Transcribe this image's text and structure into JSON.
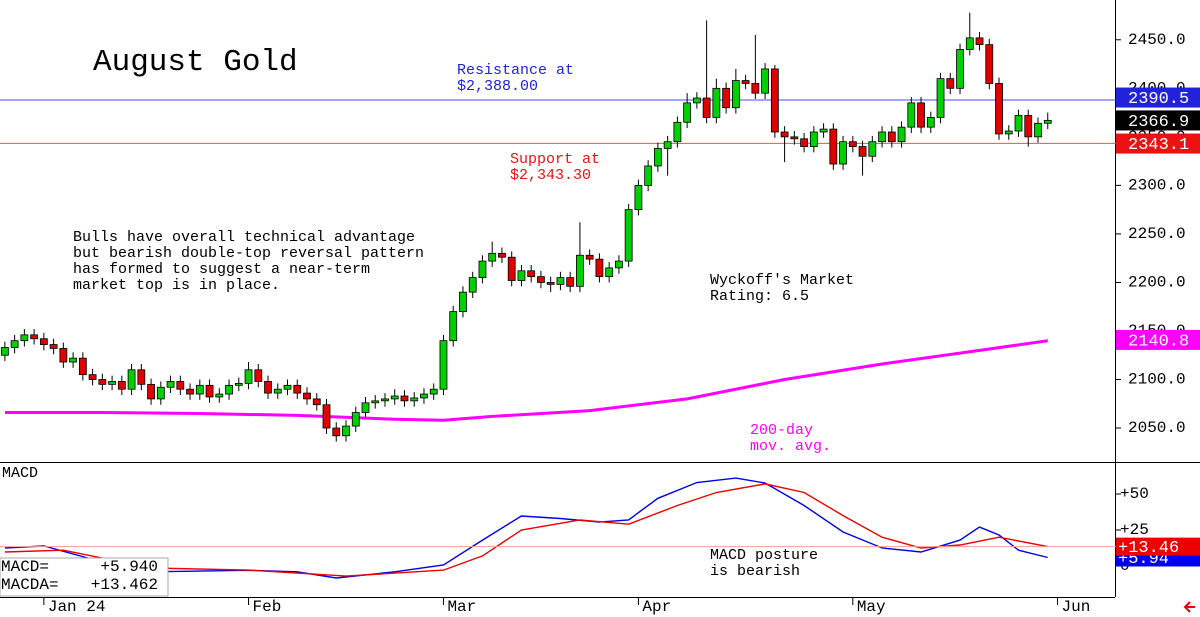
{
  "chart_data": [
    {
      "type": "candlestick",
      "title": "August Gold",
      "xlim": [
        -0.5,
        113.9
      ],
      "xticks": [
        {
          "value": 4,
          "label": "Jan 24"
        },
        {
          "value": 25,
          "label": "Feb"
        },
        {
          "value": 45,
          "label": "Mar"
        },
        {
          "value": 65,
          "label": "Apr"
        },
        {
          "value": 87,
          "label": "May"
        },
        {
          "value": 108,
          "label": "Jun"
        }
      ],
      "ylim": [
        2015,
        2491
      ],
      "yticks": [
        {
          "value": 2050,
          "label": "2050.0"
        },
        {
          "value": 2100,
          "label": "2100.0"
        },
        {
          "value": 2150,
          "label": "2150.0"
        },
        {
          "value": 2200,
          "label": "2200.0"
        },
        {
          "value": 2250,
          "label": "2250.0"
        },
        {
          "value": 2300,
          "label": "2300.0"
        },
        {
          "value": 2350,
          "label": "2350.0"
        },
        {
          "value": 2400,
          "label": "2400.0"
        },
        {
          "value": 2450,
          "label": "2450.0"
        }
      ],
      "up_color": "#00d000",
      "down_color": "#e00000",
      "open": [
        2125,
        2133,
        2140,
        2146,
        2142,
        2136,
        2132,
        2118,
        2122,
        2105,
        2100,
        2095,
        2098,
        2090,
        2110,
        2095,
        2080,
        2092,
        2098,
        2090,
        2085,
        2094,
        2082,
        2085,
        2094,
        2096,
        2110,
        2098,
        2086,
        2090,
        2094,
        2086,
        2080,
        2074,
        2050,
        2042,
        2052,
        2066,
        2076,
        2078,
        2080,
        2083,
        2078,
        2081,
        2085,
        2090,
        2140,
        2170,
        2190,
        2205,
        2222,
        2230,
        2226,
        2202,
        2212,
        2206,
        2200,
        2198,
        2205,
        2196,
        2228,
        2224,
        2206,
        2215,
        2222,
        2275,
        2300,
        2320,
        2338,
        2345,
        2365,
        2385,
        2390,
        2370,
        2400,
        2380,
        2408,
        2405,
        2395,
        2420,
        2355,
        2350,
        2348,
        2340,
        2355,
        2358,
        2322,
        2345,
        2340,
        2330,
        2345,
        2355,
        2345,
        2360,
        2385,
        2360,
        2370,
        2410,
        2400,
        2440,
        2452,
        2445,
        2405,
        2353,
        2356,
        2372,
        2350,
        2364
      ],
      "high": [
        2139,
        2146,
        2152,
        2152,
        2148,
        2142,
        2138,
        2128,
        2128,
        2111,
        2106,
        2104,
        2104,
        2116,
        2116,
        2101,
        2098,
        2104,
        2104,
        2096,
        2100,
        2100,
        2091,
        2100,
        2102,
        2118,
        2116,
        2104,
        2096,
        2100,
        2100,
        2092,
        2086,
        2080,
        2056,
        2058,
        2072,
        2082,
        2084,
        2086,
        2090,
        2089,
        2087,
        2091,
        2096,
        2146,
        2176,
        2196,
        2211,
        2228,
        2242,
        2236,
        2232,
        2218,
        2218,
        2212,
        2206,
        2211,
        2211,
        2262,
        2234,
        2230,
        2221,
        2228,
        2281,
        2306,
        2326,
        2344,
        2351,
        2371,
        2395,
        2396,
        2470,
        2410,
        2406,
        2420,
        2414,
        2455,
        2426,
        2424,
        2361,
        2356,
        2354,
        2361,
        2364,
        2364,
        2351,
        2351,
        2346,
        2351,
        2361,
        2361,
        2366,
        2391,
        2391,
        2376,
        2416,
        2416,
        2446,
        2478,
        2458,
        2451,
        2411,
        2362,
        2378,
        2378,
        2370,
        2375
      ],
      "low": [
        2119,
        2127,
        2134,
        2136,
        2130,
        2126,
        2112,
        2112,
        2099,
        2094,
        2089,
        2089,
        2084,
        2084,
        2089,
        2074,
        2074,
        2086,
        2084,
        2079,
        2079,
        2076,
        2076,
        2079,
        2088,
        2090,
        2092,
        2080,
        2080,
        2084,
        2080,
        2074,
        2068,
        2044,
        2036,
        2036,
        2046,
        2060,
        2070,
        2072,
        2074,
        2072,
        2072,
        2075,
        2079,
        2084,
        2134,
        2164,
        2184,
        2199,
        2216,
        2220,
        2196,
        2196,
        2200,
        2194,
        2190,
        2192,
        2190,
        2190,
        2218,
        2200,
        2200,
        2209,
        2216,
        2269,
        2294,
        2314,
        2310,
        2339,
        2359,
        2379,
        2364,
        2364,
        2374,
        2374,
        2399,
        2389,
        2389,
        2349,
        2324,
        2342,
        2334,
        2334,
        2349,
        2316,
        2316,
        2334,
        2310,
        2324,
        2339,
        2339,
        2339,
        2354,
        2354,
        2354,
        2364,
        2394,
        2394,
        2434,
        2439,
        2399,
        2347,
        2347,
        2350,
        2340,
        2344,
        2358
      ],
      "close": [
        2133,
        2140,
        2146,
        2142,
        2136,
        2132,
        2118,
        2122,
        2105,
        2100,
        2095,
        2098,
        2090,
        2110,
        2095,
        2080,
        2092,
        2098,
        2090,
        2085,
        2094,
        2082,
        2085,
        2094,
        2096,
        2110,
        2098,
        2086,
        2090,
        2094,
        2086,
        2080,
        2074,
        2050,
        2042,
        2052,
        2066,
        2076,
        2078,
        2080,
        2083,
        2078,
        2081,
        2085,
        2090,
        2140,
        2170,
        2190,
        2205,
        2222,
        2230,
        2226,
        2202,
        2212,
        2206,
        2200,
        2198,
        2205,
        2196,
        2228,
        2224,
        2206,
        2215,
        2222,
        2275,
        2300,
        2320,
        2338,
        2345,
        2365,
        2385,
        2390,
        2370,
        2400,
        2380,
        2408,
        2405,
        2395,
        2420,
        2355,
        2350,
        2348,
        2340,
        2355,
        2358,
        2322,
        2345,
        2340,
        2330,
        2345,
        2355,
        2345,
        2360,
        2385,
        2360,
        2370,
        2410,
        2400,
        2440,
        2452,
        2445,
        2405,
        2353,
        2356,
        2372,
        2350,
        2364,
        2367
      ],
      "series": [
        {
          "name": "200-day",
          "color": "#ff00ff",
          "x": [
            0,
            10,
            20,
            30,
            40,
            45,
            50,
            60,
            70,
            80,
            90,
            100,
            107
          ],
          "values": [
            2066,
            2066,
            2065,
            2063,
            2059,
            2058,
            2062,
            2068,
            2080,
            2100,
            2116,
            2130,
            2140
          ]
        }
      ],
      "lines": [
        {
          "value": 2388,
          "color": "#4a4aff"
        },
        {
          "value": 2343.3,
          "color": "#ff4a4a"
        }
      ],
      "badges": [
        {
          "value": 2390.5,
          "color": "#2222dd"
        },
        {
          "value": 2366.9,
          "color": "#000000"
        },
        {
          "value": 2343.1,
          "color": "#ee1111"
        },
        {
          "value": 2140.8,
          "color": "#ff00ff"
        }
      ],
      "annotations": [
        {
          "lines": [
            "Resistance at",
            "$2,388.00"
          ],
          "color": "#2222dd"
        },
        {
          "lines": [
            "Support at",
            "$2,343.30"
          ],
          "color": "#ee1111"
        },
        {
          "lines": [
            "Bulls have overall technical advantage",
            "but bearish double-top reversal pattern",
            "has formed to suggest a near-term",
            "market top is in place."
          ],
          "color": "#000000"
        },
        {
          "lines": [
            "Wyckoff's Market",
            "Rating: 6.5"
          ],
          "color": "#000000"
        },
        {
          "lines": [
            "200-day",
            "mov. avg."
          ],
          "color": "#ff00ff"
        }
      ]
    },
    {
      "type": "line",
      "title": "MACD",
      "ylim": [
        -21.5,
        72.2
      ],
      "yticks": [
        {
          "value": 50,
          "label": "+50"
        },
        {
          "value": 25,
          "label": "+25"
        },
        0
      ],
      "series": [
        {
          "name": "MACD=",
          "last_label": "+5.940",
          "badge_label": "+5.94",
          "color": "#0000ee",
          "x": [
            0,
            4,
            10,
            15,
            25,
            30,
            34,
            40,
            45,
            49,
            53,
            57,
            61,
            64,
            67,
            71,
            75,
            78,
            82,
            86,
            90,
            94,
            98,
            100,
            102,
            104,
            107
          ],
          "values": [
            12.5,
            13.9,
            2.8,
            -4,
            -3,
            -4,
            -8.3,
            -4,
            0.7,
            18,
            34.7,
            33,
            30.5,
            32,
            47,
            58,
            61,
            57.6,
            42,
            23.6,
            12.5,
            9.7,
            18,
            27,
            21.5,
            11,
            5.94
          ]
        },
        {
          "name": "MACDA=",
          "last_label": "+13.462",
          "badge_label": "+13.46",
          "color": "#ee0000",
          "x": [
            0,
            6,
            15,
            25,
            35,
            45,
            49,
            53,
            59,
            64,
            69,
            73,
            78,
            82,
            86,
            90,
            94,
            98,
            102,
            107
          ],
          "values": [
            9.7,
            11,
            -1.4,
            -2.8,
            -7,
            -2.8,
            7,
            25,
            32,
            29,
            42,
            51,
            57,
            51,
            35,
            20,
            12.5,
            14.6,
            20,
            13.462
          ]
        }
      ],
      "annotations": [
        {
          "lines": [
            "MACD posture",
            "is bearish"
          ],
          "color": "#000000"
        }
      ]
    }
  ]
}
